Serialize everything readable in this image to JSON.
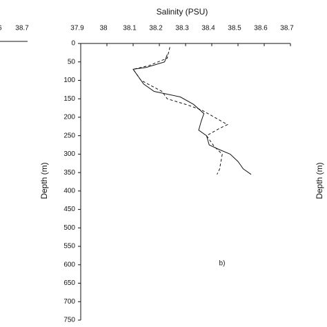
{
  "chart_data": {
    "type": "line",
    "title": "Salinity (PSU)",
    "ylabel": "Depth (m)",
    "annotation": "b)",
    "xlim": [
      37.9,
      38.7
    ],
    "xticks": [
      37.9,
      38.0,
      38.1,
      38.2,
      38.3,
      38.4,
      38.5,
      38.6,
      38.7
    ],
    "ylim": [
      0,
      750
    ],
    "yticks": [
      0,
      50,
      100,
      150,
      200,
      250,
      300,
      350,
      400,
      450,
      500,
      550,
      600,
      650,
      700,
      750
    ],
    "y_inverted": true,
    "x_axis_top": true,
    "series": [
      {
        "color": "#111111",
        "dash": false,
        "x": [
          38.23,
          38.22,
          38.15,
          38.1,
          38.12,
          38.14,
          38.18,
          38.28,
          38.33,
          38.37,
          38.36,
          38.35,
          38.38,
          38.39,
          38.42,
          38.47,
          38.5,
          38.52,
          38.55
        ],
        "values": [
          30,
          50,
          65,
          70,
          90,
          110,
          130,
          145,
          165,
          190,
          210,
          235,
          250,
          275,
          285,
          300,
          320,
          340,
          355
        ]
      },
      {
        "color": "#111111",
        "dash": true,
        "x": [
          38.24,
          38.23,
          38.16,
          38.1,
          38.13,
          38.21,
          38.23,
          38.3,
          38.36,
          38.41,
          38.46,
          38.43,
          38.38,
          38.41,
          38.44,
          38.43,
          38.42
        ],
        "values": [
          10,
          40,
          60,
          70,
          100,
          130,
          150,
          165,
          180,
          200,
          220,
          230,
          250,
          280,
          300,
          340,
          355
        ]
      }
    ]
  },
  "other_panels": {
    "left_ticks": [
      "6",
      "38.7"
    ],
    "right_ylabel": "Depth (m)"
  }
}
